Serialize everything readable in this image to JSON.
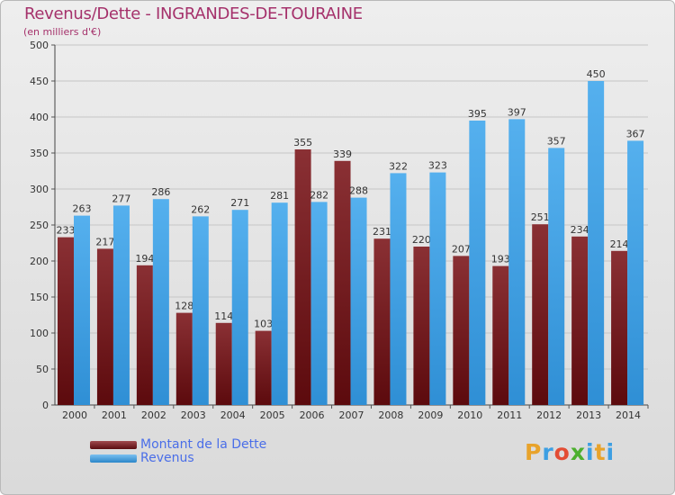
{
  "header": {
    "title": "Revenus/Dette - INGRANDES-DE-TOURAINE",
    "subtitle": "(en milliers d'€)"
  },
  "chart_data": {
    "type": "bar",
    "title": "Revenus/Dette - INGRANDES-DE-TOURAINE",
    "ylabel": "(en milliers d'€)",
    "xlabel": "",
    "ylim": [
      0,
      500
    ],
    "yticks": [
      0,
      50,
      100,
      150,
      200,
      250,
      300,
      350,
      400,
      450,
      500
    ],
    "grid": true,
    "legend_position": "bottom-left",
    "categories": [
      "2000",
      "2001",
      "2002",
      "2003",
      "2004",
      "2005",
      "2006",
      "2007",
      "2008",
      "2009",
      "2010",
      "2011",
      "2012",
      "2013",
      "2014"
    ],
    "series": [
      {
        "name": "Montant de la Dette",
        "color": "#7a2024",
        "values": [
          233,
          217,
          194,
          128,
          114,
          103,
          355,
          339,
          231,
          220,
          207,
          193,
          251,
          234,
          214
        ]
      },
      {
        "name": "Revenus",
        "color": "#3d9fe3",
        "values": [
          263,
          277,
          286,
          262,
          271,
          281,
          282,
          288,
          322,
          323,
          395,
          397,
          357,
          450,
          367
        ]
      }
    ]
  },
  "legend": {
    "items": [
      {
        "label": "Montant de la Dette",
        "color": "#7a2024"
      },
      {
        "label": "Revenus",
        "color": "#3d9fe3"
      }
    ]
  },
  "logo": {
    "letters": [
      "P",
      "r",
      "o",
      "x",
      "i",
      "t",
      "i"
    ],
    "colors": [
      "#e8a32b",
      "#3d9fe3",
      "#e34d34",
      "#4caf2e",
      "#3d9fe3",
      "#e8a32b",
      "#3d9fe3"
    ]
  }
}
